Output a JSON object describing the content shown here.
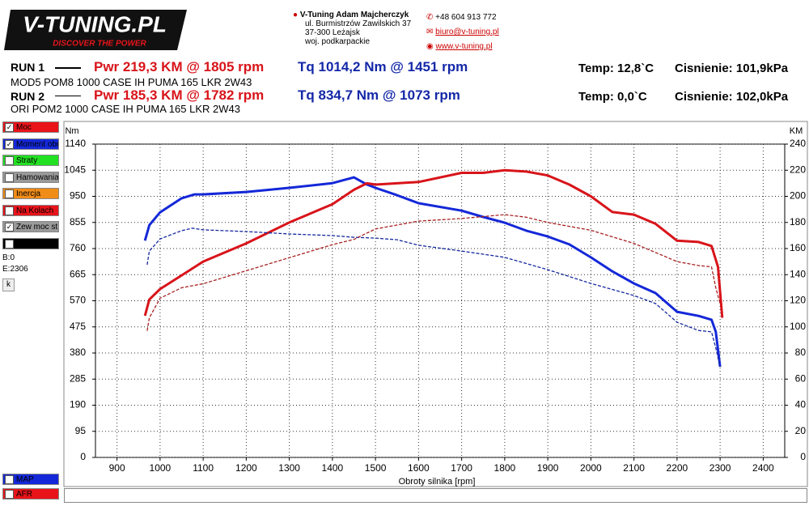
{
  "header": {
    "logo": "V-TUNING.PL",
    "slogan": "DISCOVER THE POWER",
    "company": "V-Tuning Adam Majcherczyk",
    "address": [
      "ul. Burmistrzów Zawilskich 37",
      "37-300 Leżajsk",
      "woj. podkarpackie"
    ],
    "phone": "+48 604 913 772",
    "email": "biuro@v-tuning.pl",
    "web": "www.v-tuning.pl"
  },
  "runs": [
    {
      "label": "RUN 1",
      "power": "Pwr  219,3 KM @ 1805 rpm",
      "torque": "Tq 1014,2 Nm @ 1451 rpm",
      "temp": "Temp: 12,8`C",
      "pressure": "Cisnienie: 101,9kPa",
      "description": "MOD5 POM8 1000 CASE IH PUMA 165 LKR 2W43"
    },
    {
      "label": "RUN 2",
      "power": "Pwr  185,3 KM @ 1782 rpm",
      "torque": "Tq 834,7 Nm @ 1073 rpm",
      "temp": "Temp: 0,0`C",
      "pressure": "Cisnienie: 102,0kPa",
      "description": "ORI POM2 1000 CASE IH PUMA 165 LKR 2W43"
    }
  ],
  "side_panel": {
    "items": [
      {
        "label": "Moc",
        "color": "#e8141a",
        "checked": true
      },
      {
        "label": "Moment obr",
        "color": "#1428d8",
        "checked": true
      },
      {
        "label": "Straty",
        "color": "#22e022",
        "checked": false
      },
      {
        "label": "Hamowania",
        "color": "#9a9a9a",
        "checked": false
      },
      {
        "label": "Inercja",
        "color": "#f08c18",
        "checked": false
      },
      {
        "label": "Na Kolach",
        "color": "#e8141a",
        "checked": false
      },
      {
        "label": "Zew moc st",
        "color": "#9a9a9a",
        "checked": true
      },
      {
        "label": null,
        "color": "#000000",
        "checked": false
      }
    ],
    "b": "B:0",
    "e": "E:2306",
    "button": "k",
    "bottom_items": [
      {
        "label": "MAP",
        "color": "#1428d8",
        "checked": false
      },
      {
        "label": "AFR",
        "color": "#e8141a",
        "checked": false
      }
    ]
  },
  "chart_data": {
    "type": "line",
    "y_label": "Nm",
    "y2_label": "KM",
    "x_label": "Obroty silnika [rpm]",
    "grid": true,
    "xlim": [
      850,
      2450
    ],
    "xticks": [
      900,
      1000,
      1100,
      1200,
      1300,
      1400,
      1500,
      1600,
      1700,
      1800,
      1900,
      2000,
      2100,
      2200,
      2300,
      2400
    ],
    "ylim": [
      0,
      1140
    ],
    "yticks": [
      0,
      95,
      190,
      285,
      380,
      475,
      570,
      665,
      760,
      855,
      950,
      1045,
      1140
    ],
    "y2lim": [
      0,
      240
    ],
    "y2ticks": [
      0,
      20,
      40,
      60,
      80,
      100,
      120,
      140,
      160,
      180,
      200,
      220,
      240
    ],
    "series": [
      {
        "color": "#1428d8",
        "style": "solid",
        "axis": "y",
        "x": [
          965,
          975,
          1000,
          1050,
          1080,
          1100,
          1200,
          1300,
          1400,
          1450,
          1480,
          1500,
          1550,
          1600,
          1700,
          1750,
          1800,
          1850,
          1900,
          1950,
          2000,
          2050,
          2100,
          2150,
          2200,
          2250,
          2280,
          2290,
          2300
        ],
        "values": [
          789,
          845,
          892,
          943,
          957,
          957,
          966,
          981,
          998,
          1019,
          993,
          981,
          954,
          925,
          898,
          875,
          854,
          825,
          804,
          775,
          728,
          677,
          633,
          598,
          530,
          515,
          501,
          457,
          330
        ]
      },
      {
        "color": "#d8141a",
        "style": "solid",
        "axis": "y2",
        "x": [
          965,
          975,
          1000,
          1050,
          1100,
          1200,
          1300,
          1400,
          1450,
          1480,
          1500,
          1550,
          1600,
          1700,
          1750,
          1800,
          1850,
          1900,
          1950,
          2000,
          2050,
          2100,
          2150,
          2200,
          2250,
          2280,
          2295,
          2305
        ],
        "values": [
          108.5,
          121,
          129,
          139.5,
          150,
          164,
          180,
          194,
          205,
          210,
          209,
          210,
          211,
          218,
          218,
          220,
          219,
          216,
          209,
          200,
          188,
          186,
          179,
          166,
          165,
          162,
          146,
          107
        ]
      },
      {
        "color": "#1428a0",
        "style": "dashed",
        "axis": "y",
        "x": [
          970,
          975,
          1000,
          1050,
          1075,
          1100,
          1200,
          1300,
          1400,
          1450,
          1500,
          1550,
          1600,
          1700,
          1800,
          1900,
          2000,
          2100,
          2150,
          2200,
          2250,
          2280,
          2290,
          2300
        ],
        "values": [
          701,
          751,
          795,
          825,
          834,
          828,
          822,
          813,
          807,
          801,
          798,
          792,
          772,
          751,
          728,
          683,
          633,
          589,
          560,
          492,
          462,
          457,
          398,
          330
        ]
      },
      {
        "color": "#a82020",
        "style": "dashed",
        "axis": "y2",
        "x": [
          970,
          975,
          1000,
          1050,
          1100,
          1200,
          1300,
          1400,
          1450,
          1500,
          1600,
          1700,
          1800,
          1850,
          1900,
          2000,
          2100,
          2200,
          2250,
          2280,
          2290,
          2300
        ],
        "values": [
          97,
          107,
          122,
          130,
          133,
          143,
          153,
          163,
          167,
          175,
          181,
          183,
          186,
          184,
          180,
          174,
          164,
          150,
          147,
          146,
          130,
          118
        ]
      }
    ]
  }
}
